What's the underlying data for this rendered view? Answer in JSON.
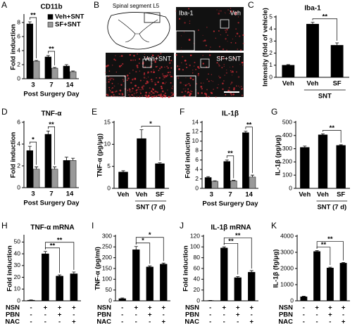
{
  "image_panel": {
    "panel": "B",
    "schematic_label": "Spinal segment L5",
    "stain": "Iba-1",
    "images": [
      "Veh",
      "Veh+SNT",
      "SF+SNT"
    ]
  },
  "chart_data": [
    {
      "panel": "A",
      "type": "bar",
      "title": "CD11b",
      "y_label": "Fold induction",
      "x_label": "Post Surgery Day",
      "categories": [
        "3",
        "7",
        "14"
      ],
      "series": [
        {
          "name": "Veh+SNT",
          "color": "#000000",
          "values": [
            7.8,
            3.1,
            1.8
          ],
          "errors": [
            0.3,
            0.2,
            0.2
          ]
        },
        {
          "name": "SF+SNT",
          "color": "#999999",
          "values": [
            2.5,
            1.5,
            1.0
          ],
          "errors": [
            0.1,
            0.1,
            0.1
          ]
        }
      ],
      "ylim": [
        0,
        9
      ],
      "yticks": [
        0,
        2,
        4,
        6,
        8
      ],
      "legend": "upper right",
      "significance": [
        {
          "label": "**",
          "category": 0
        },
        {
          "label": "**",
          "category": 1
        }
      ]
    },
    {
      "panel": "C",
      "type": "bar",
      "title": "Iba-1",
      "y_label": "Intensity (fold of vehicle)",
      "categories": [
        "Veh",
        "Veh",
        "SF"
      ],
      "values": [
        1.0,
        4.4,
        2.65
      ],
      "errors": [
        0.05,
        0.15,
        0.2
      ],
      "color": "#000000",
      "ylim": [
        0,
        5
      ],
      "yticks": [
        0,
        1,
        2,
        3,
        4,
        5
      ],
      "group": {
        "label": "SNT",
        "bars": [
          1,
          2
        ]
      },
      "significance": [
        {
          "label": "**",
          "bars": [
            1,
            2
          ]
        }
      ]
    },
    {
      "panel": "D",
      "type": "bar",
      "title": "TNF-α",
      "y_label": "Fold induction",
      "x_label": "Post Surgery Day",
      "categories": [
        "3",
        "7",
        "14"
      ],
      "series": [
        {
          "name": "Veh+SNT",
          "color": "#000000",
          "values": [
            3.4,
            4.9,
            2.5
          ],
          "errors": [
            0.4,
            0.3,
            0.3
          ]
        },
        {
          "name": "SF+SNT",
          "color": "#999999",
          "values": [
            1.7,
            1.7,
            2.5
          ],
          "errors": [
            0.2,
            0.2,
            0.2
          ]
        }
      ],
      "ylim": [
        0,
        6
      ],
      "yticks": [
        0,
        2,
        4,
        6
      ],
      "significance": [
        {
          "label": "*",
          "category": 0
        },
        {
          "label": "**",
          "category": 1
        }
      ]
    },
    {
      "panel": "E",
      "type": "bar",
      "y_label": "TNF-α (pg/μg)",
      "categories": [
        "Veh",
        "Veh",
        "SF"
      ],
      "values": [
        3.7,
        11.3,
        5.6
      ],
      "errors": [
        0.3,
        2.0,
        0.2
      ],
      "color": "#000000",
      "ylim": [
        0,
        15
      ],
      "yticks": [
        0,
        5,
        10,
        15
      ],
      "group": {
        "label": "SNT (7 d)",
        "bars": [
          1,
          2
        ]
      },
      "significance": [
        {
          "label": "*",
          "bars": [
            1,
            2
          ]
        }
      ]
    },
    {
      "panel": "F",
      "type": "bar",
      "title": "IL-1β",
      "y_label": "Fold induction",
      "x_label": "Post Surgery Day",
      "categories": [
        "3",
        "7",
        "14"
      ],
      "series": [
        {
          "name": "Veh+SNT",
          "color": "#000000",
          "values": [
            2.3,
            5.7,
            11.8
          ],
          "errors": [
            0.2,
            0.3,
            0.3
          ]
        },
        {
          "name": "SF+SNT",
          "color": "#999999",
          "values": [
            1.5,
            1.6,
            2.4
          ],
          "errors": [
            0.1,
            0.1,
            0.4
          ]
        }
      ],
      "ylim": [
        0,
        14
      ],
      "yticks": [
        0,
        2,
        4,
        6,
        8,
        10,
        12,
        14
      ],
      "significance": [
        {
          "label": "**",
          "category": 1
        },
        {
          "label": "**",
          "category": 2
        }
      ]
    },
    {
      "panel": "G",
      "type": "bar",
      "y_label": "IL-1β (pg/μg)",
      "categories": [
        "Veh",
        "Veh",
        "SF"
      ],
      "values": [
        310,
        405,
        325
      ],
      "errors": [
        10,
        8,
        5
      ],
      "color": "#000000",
      "ylim": [
        0,
        500
      ],
      "yticks": [
        0,
        100,
        200,
        300,
        400,
        500
      ],
      "group": {
        "label": "SNT (7 d)",
        "bars": [
          1,
          2
        ]
      },
      "significance": [
        {
          "label": "**",
          "bars": [
            1,
            2
          ]
        }
      ]
    },
    {
      "panel": "H",
      "type": "bar",
      "title": "TNF-α mRNA",
      "y_label": "Fold induction",
      "values": [
        0.5,
        40,
        21,
        23
      ],
      "errors": [
        0.2,
        2,
        1,
        1.5
      ],
      "color": "#000000",
      "ylim": [
        0,
        55
      ],
      "yticks": [
        0,
        10,
        20,
        30,
        40,
        50
      ],
      "conditions": [
        {
          "name": "NSN",
          "values": [
            "-",
            "+",
            "+",
            "+"
          ]
        },
        {
          "name": "PBN",
          "values": [
            "-",
            "-",
            "+",
            "-"
          ]
        },
        {
          "name": "NAC",
          "values": [
            "-",
            "-",
            "-",
            "+"
          ]
        }
      ],
      "significance": [
        {
          "label": "**",
          "bars": [
            1,
            2
          ]
        },
        {
          "label": "**",
          "bars": [
            1,
            3
          ]
        }
      ]
    },
    {
      "panel": "I",
      "type": "bar",
      "y_label": "TNF-α (pg/ml)",
      "values": [
        10,
        237,
        157,
        170
      ],
      "errors": [
        3,
        15,
        5,
        5
      ],
      "color": "#000000",
      "ylim": [
        0,
        300
      ],
      "yticks": [
        0,
        50,
        100,
        150,
        200,
        250,
        300
      ],
      "conditions": [
        {
          "name": "NSN",
          "values": [
            "-",
            "+",
            "+",
            "+"
          ]
        },
        {
          "name": "PBN",
          "values": [
            "-",
            "-",
            "+",
            "-"
          ]
        },
        {
          "name": "NAC",
          "values": [
            "-",
            "-",
            "-",
            "+"
          ]
        }
      ],
      "significance": [
        {
          "label": "*",
          "bars": [
            1,
            2
          ]
        },
        {
          "label": "*",
          "bars": [
            1,
            3
          ]
        }
      ]
    },
    {
      "panel": "J",
      "type": "bar",
      "title": "IL-1β mRNA",
      "y_label": "Fold induction",
      "values": [
        0.5,
        98,
        43,
        53
      ],
      "errors": [
        0.3,
        2,
        2,
        3
      ],
      "color": "#000000",
      "ylim": [
        0,
        120
      ],
      "yticks": [
        0,
        20,
        40,
        60,
        80,
        100,
        120
      ],
      "conditions": [
        {
          "name": "NSN",
          "values": [
            "-",
            "+",
            "+",
            "+"
          ]
        },
        {
          "name": "PBN",
          "values": [
            "-",
            "-",
            "+",
            "-"
          ]
        },
        {
          "name": "NAC",
          "values": [
            "-",
            "-",
            "-",
            "+"
          ]
        }
      ],
      "significance": [
        {
          "label": "**",
          "bars": [
            1,
            2
          ]
        },
        {
          "label": "**",
          "bars": [
            1,
            3
          ]
        }
      ]
    },
    {
      "panel": "K",
      "type": "bar",
      "y_label": "IL-1β (fg/μg)",
      "values": [
        250,
        3050,
        2030,
        2330
      ],
      "errors": [
        30,
        50,
        50,
        40
      ],
      "color": "#000000",
      "ylim": [
        0,
        4000
      ],
      "yticks": [
        0,
        1000,
        2000,
        3000,
        4000
      ],
      "conditions": [
        {
          "name": "NSN",
          "values": [
            "-",
            "+",
            "+",
            "+"
          ]
        },
        {
          "name": "PBN",
          "values": [
            "-",
            "-",
            "+",
            "-"
          ]
        },
        {
          "name": "NAC",
          "values": [
            "-",
            "-",
            "-",
            "+"
          ]
        }
      ],
      "significance": [
        {
          "label": "**",
          "bars": [
            1,
            2
          ]
        },
        {
          "label": "**",
          "bars": [
            1,
            3
          ]
        }
      ]
    }
  ]
}
